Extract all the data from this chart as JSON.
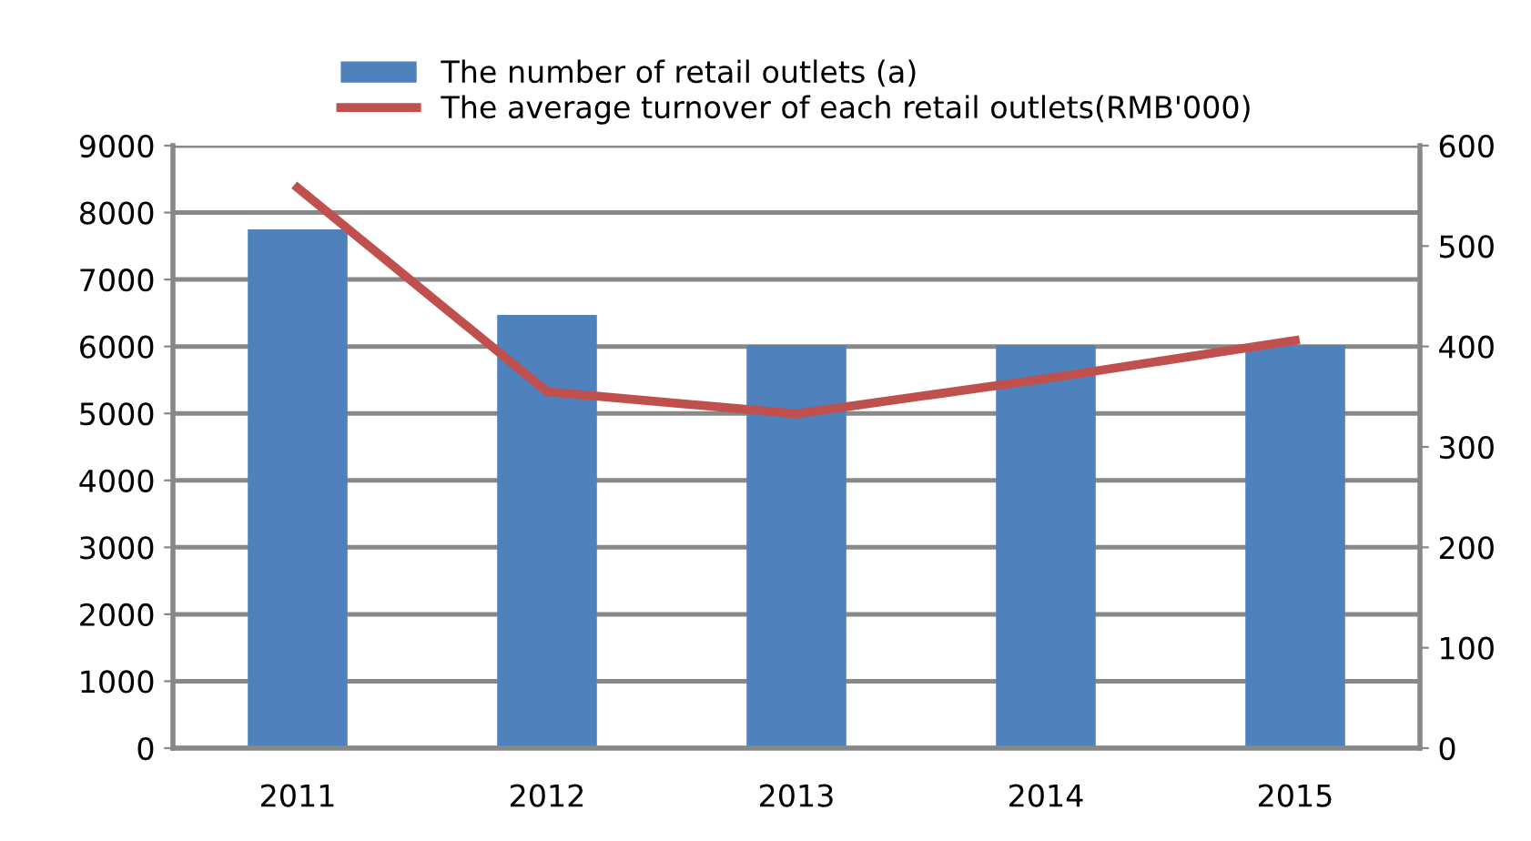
{
  "chart_data": {
    "type": "bar",
    "categories": [
      "2011",
      "2012",
      "2013",
      "2014",
      "2015"
    ],
    "series": [
      {
        "name": "The number of retail outlets (a)",
        "color": "#4f81bd",
        "values": [
          7750,
          6470,
          6020,
          6020,
          6020
        ]
      },
      {
        "name": "The average turnover of each retail outlets(RMB'000)",
        "color": "#c0504d",
        "type": "line",
        "axis": "y2",
        "values": [
          558,
          355,
          333,
          368,
          406
        ]
      }
    ],
    "ylim": [
      0,
      9000
    ],
    "yticks": [
      0,
      1000,
      2000,
      3000,
      4000,
      5000,
      6000,
      7000,
      8000,
      9000
    ],
    "y2lim": [
      0,
      600
    ],
    "y2ticks": [
      0,
      100,
      200,
      300,
      400,
      500,
      600
    ],
    "grid": "y",
    "legend": "top",
    "marker": "none",
    "line_style": "solid"
  }
}
